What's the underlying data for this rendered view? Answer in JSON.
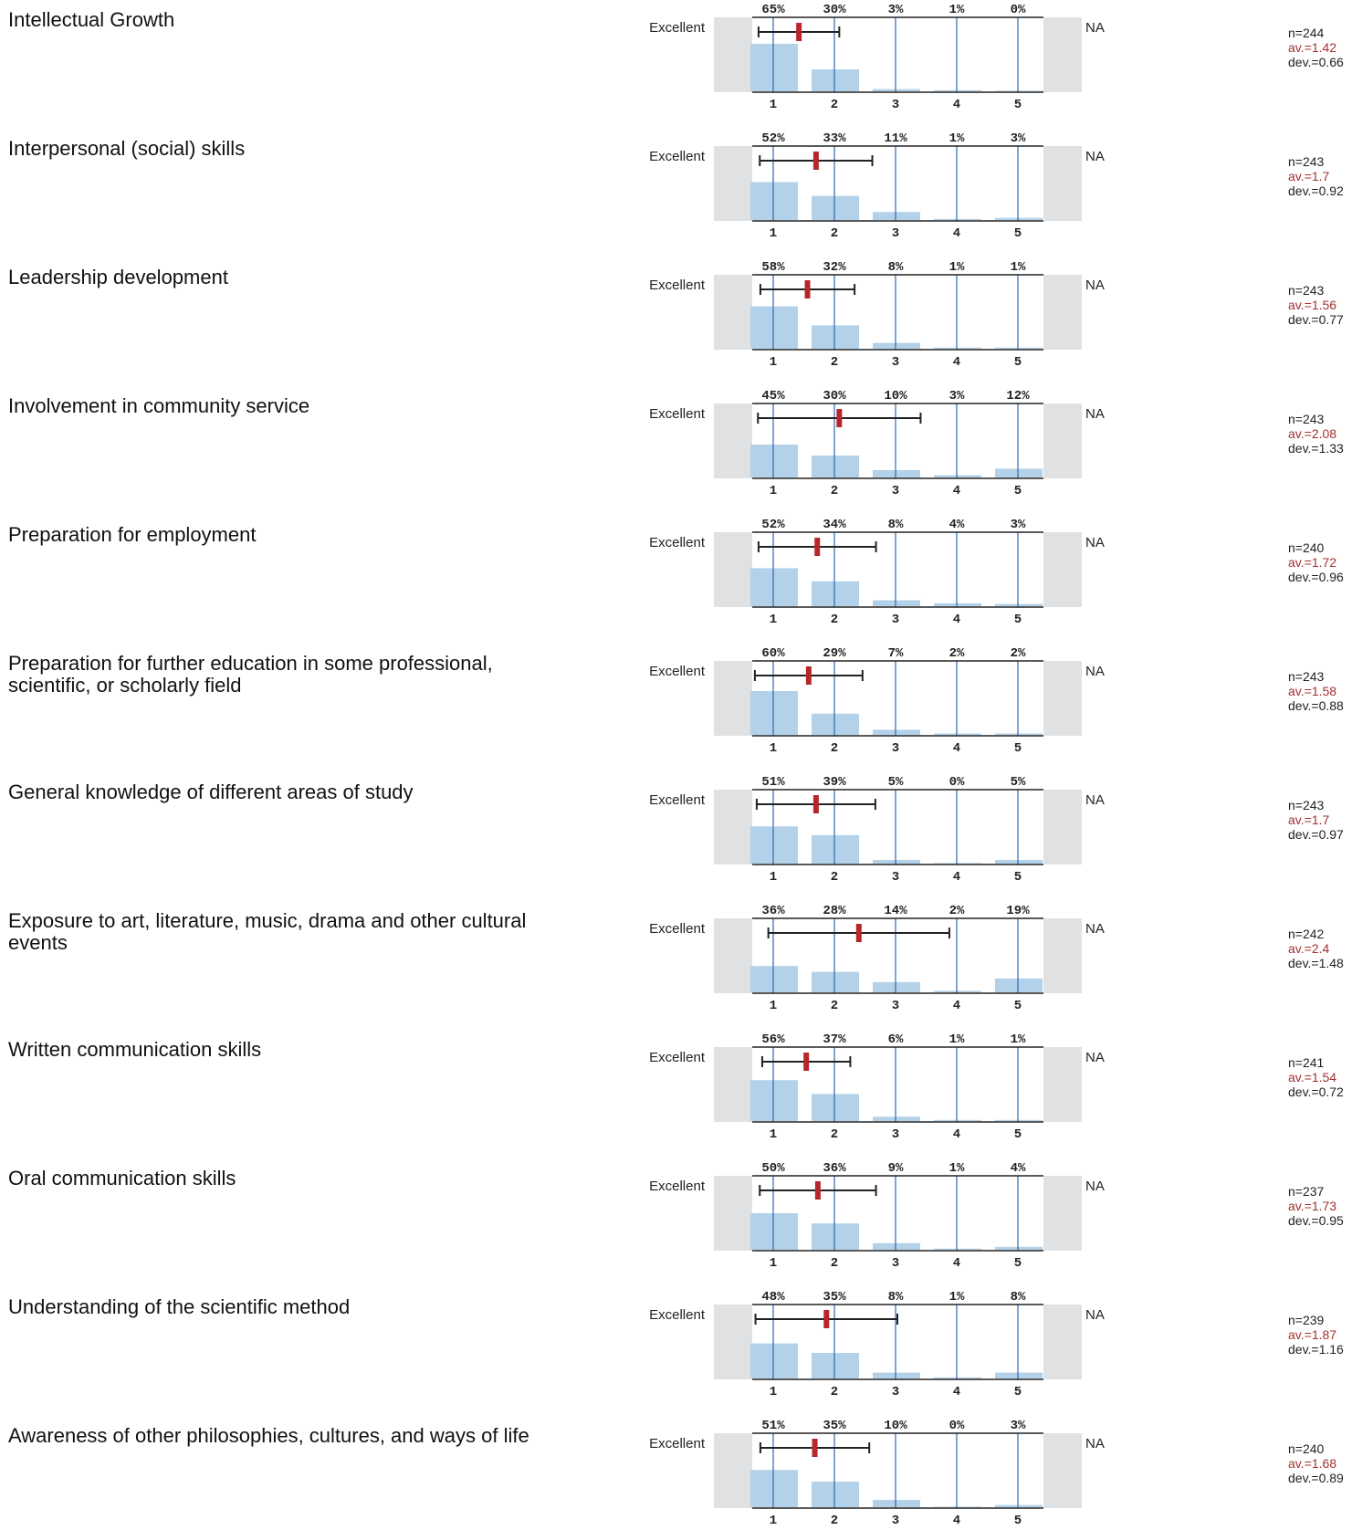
{
  "anchors": {
    "left": "Excellent",
    "right": "NA"
  },
  "colors": {
    "bar": "#b3d2ea",
    "gridline": "#2a6bb0",
    "side_panel": "#e0e1e2",
    "mean_marker": "#b7262a",
    "whisker": "#222222",
    "av_text": "#a33232"
  },
  "chart_data": [
    {
      "type": "bar",
      "title": "Intellectual Growth",
      "categories": [
        "1",
        "2",
        "3",
        "4",
        "5"
      ],
      "values": [
        65,
        30,
        3,
        1,
        0
      ],
      "value_labels": [
        "65%",
        "30%",
        "3%",
        "1%",
        "0%"
      ],
      "n": 244,
      "mean": 1.42,
      "dev": 0.66,
      "n_text": "n=244",
      "av_text": "av.=1.42",
      "dev_text": "dev.=0.66"
    },
    {
      "type": "bar",
      "title": "Interpersonal (social) skills",
      "categories": [
        "1",
        "2",
        "3",
        "4",
        "5"
      ],
      "values": [
        52,
        33,
        11,
        1,
        3
      ],
      "value_labels": [
        "52%",
        "33%",
        "11%",
        "1%",
        "3%"
      ],
      "n": 243,
      "mean": 1.7,
      "dev": 0.92,
      "n_text": "n=243",
      "av_text": "av.=1.7",
      "dev_text": "dev.=0.92"
    },
    {
      "type": "bar",
      "title": "Leadership development",
      "categories": [
        "1",
        "2",
        "3",
        "4",
        "5"
      ],
      "values": [
        58,
        32,
        8,
        1,
        1
      ],
      "value_labels": [
        "58%",
        "32%",
        "8%",
        "1%",
        "1%"
      ],
      "n": 243,
      "mean": 1.56,
      "dev": 0.77,
      "n_text": "n=243",
      "av_text": "av.=1.56",
      "dev_text": "dev.=0.77"
    },
    {
      "type": "bar",
      "title": "Involvement in community service",
      "categories": [
        "1",
        "2",
        "3",
        "4",
        "5"
      ],
      "values": [
        45,
        30,
        10,
        3,
        12
      ],
      "value_labels": [
        "45%",
        "30%",
        "10%",
        "3%",
        "12%"
      ],
      "n": 243,
      "mean": 2.08,
      "dev": 1.33,
      "n_text": "n=243",
      "av_text": "av.=2.08",
      "dev_text": "dev.=1.33"
    },
    {
      "type": "bar",
      "title": "Preparation for employment",
      "categories": [
        "1",
        "2",
        "3",
        "4",
        "5"
      ],
      "values": [
        52,
        34,
        8,
        4,
        3
      ],
      "value_labels": [
        "52%",
        "34%",
        "8%",
        "4%",
        "3%"
      ],
      "n": 240,
      "mean": 1.72,
      "dev": 0.96,
      "n_text": "n=240",
      "av_text": "av.=1.72",
      "dev_text": "dev.=0.96"
    },
    {
      "type": "bar",
      "title": "Preparation for further education in some professional, scientific, or scholarly field",
      "categories": [
        "1",
        "2",
        "3",
        "4",
        "5"
      ],
      "values": [
        60,
        29,
        7,
        2,
        2
      ],
      "value_labels": [
        "60%",
        "29%",
        "7%",
        "2%",
        "2%"
      ],
      "n": 243,
      "mean": 1.58,
      "dev": 0.88,
      "n_text": "n=243",
      "av_text": "av.=1.58",
      "dev_text": "dev.=0.88"
    },
    {
      "type": "bar",
      "title": "General knowledge of different areas of study",
      "categories": [
        "1",
        "2",
        "3",
        "4",
        "5"
      ],
      "values": [
        51,
        39,
        5,
        0,
        5
      ],
      "value_labels": [
        "51%",
        "39%",
        "5%",
        "0%",
        "5%"
      ],
      "n": 243,
      "mean": 1.7,
      "dev": 0.97,
      "n_text": "n=243",
      "av_text": "av.=1.7",
      "dev_text": "dev.=0.97"
    },
    {
      "type": "bar",
      "title": "Exposure to art, literature, music, drama and other cultural events",
      "categories": [
        "1",
        "2",
        "3",
        "4",
        "5"
      ],
      "values": [
        36,
        28,
        14,
        2,
        19
      ],
      "value_labels": [
        "36%",
        "28%",
        "14%",
        "2%",
        "19%"
      ],
      "n": 242,
      "mean": 2.4,
      "dev": 1.48,
      "n_text": "n=242",
      "av_text": "av.=2.4",
      "dev_text": "dev.=1.48"
    },
    {
      "type": "bar",
      "title": "Written communication skills",
      "categories": [
        "1",
        "2",
        "3",
        "4",
        "5"
      ],
      "values": [
        56,
        37,
        6,
        1,
        1
      ],
      "value_labels": [
        "56%",
        "37%",
        "6%",
        "1%",
        "1%"
      ],
      "n": 241,
      "mean": 1.54,
      "dev": 0.72,
      "n_text": "n=241",
      "av_text": "av.=1.54",
      "dev_text": "dev.=0.72"
    },
    {
      "type": "bar",
      "title": "Oral communication skills",
      "categories": [
        "1",
        "2",
        "3",
        "4",
        "5"
      ],
      "values": [
        50,
        36,
        9,
        1,
        4
      ],
      "value_labels": [
        "50%",
        "36%",
        "9%",
        "1%",
        "4%"
      ],
      "n": 237,
      "mean": 1.73,
      "dev": 0.95,
      "n_text": "n=237",
      "av_text": "av.=1.73",
      "dev_text": "dev.=0.95"
    },
    {
      "type": "bar",
      "title": "Understanding of the scientific method",
      "categories": [
        "1",
        "2",
        "3",
        "4",
        "5"
      ],
      "values": [
        48,
        35,
        8,
        1,
        8
      ],
      "value_labels": [
        "48%",
        "35%",
        "8%",
        "1%",
        "8%"
      ],
      "n": 239,
      "mean": 1.87,
      "dev": 1.16,
      "n_text": "n=239",
      "av_text": "av.=1.87",
      "dev_text": "dev.=1.16"
    },
    {
      "type": "bar",
      "title": "Awareness of other philosophies, cultures, and ways of life",
      "categories": [
        "1",
        "2",
        "3",
        "4",
        "5"
      ],
      "values": [
        51,
        35,
        10,
        0,
        3
      ],
      "value_labels": [
        "51%",
        "35%",
        "10%",
        "0%",
        "3%"
      ],
      "n": 240,
      "mean": 1.68,
      "dev": 0.89,
      "n_text": "n=240",
      "av_text": "av.=1.68",
      "dev_text": "dev.=0.89"
    }
  ]
}
